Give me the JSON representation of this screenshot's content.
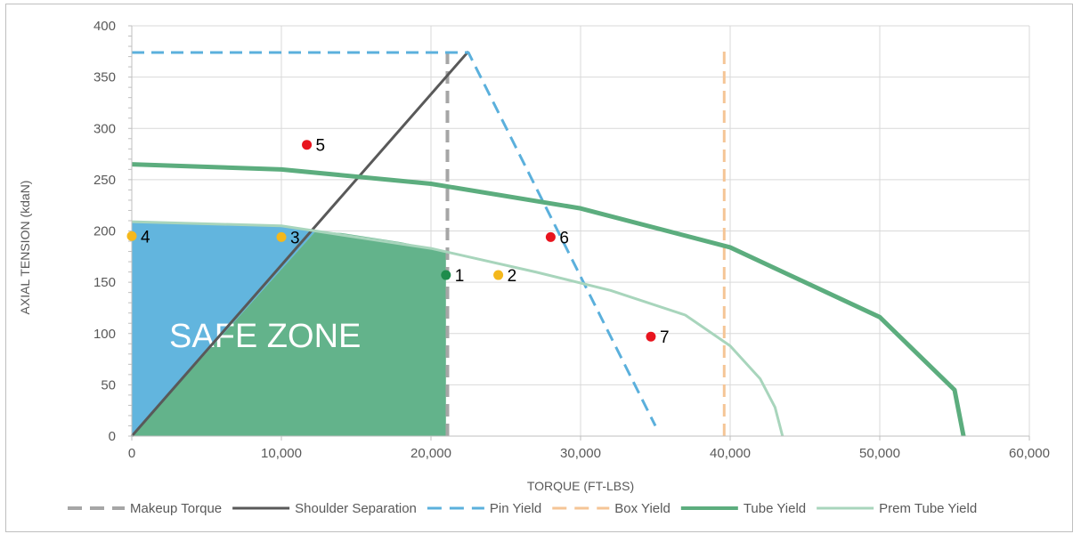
{
  "chart_data": {
    "type": "scatter",
    "xlabel": "TORQUE (FT-LBS)",
    "ylabel": "AXIAL TENSION (kdaN)",
    "xlim": [
      0,
      60000
    ],
    "ylim": [
      0,
      400
    ],
    "x_ticks": [
      0,
      10000,
      20000,
      30000,
      40000,
      50000,
      60000
    ],
    "x_tick_labels": [
      "0",
      "10,000",
      "20,000",
      "30,000",
      "40,000",
      "50,000",
      "60,000"
    ],
    "y_ticks": [
      0,
      50,
      100,
      150,
      200,
      250,
      300,
      350,
      400
    ],
    "y_tick_labels": [
      "0",
      "50",
      "100",
      "150",
      "200",
      "250",
      "300",
      "350",
      "400"
    ],
    "grid": true,
    "legend_position": "bottom",
    "annotation": "SAFE ZONE",
    "series": [
      {
        "name": "Makeup Torque",
        "style": "dashed",
        "color": "#a6a6a6",
        "width": 4,
        "points": [
          [
            21100,
            0
          ],
          [
            21100,
            375
          ]
        ]
      },
      {
        "name": "Shoulder Separation",
        "style": "solid",
        "color": "#595959",
        "width": 3,
        "points": [
          [
            0,
            0
          ],
          [
            22500,
            375
          ]
        ]
      },
      {
        "name": "Pin Yield",
        "style": "dashed",
        "color": "#5bb0dc",
        "width": 3,
        "points": [
          [
            0,
            374
          ],
          [
            22500,
            374
          ],
          [
            35000,
            10
          ]
        ]
      },
      {
        "name": "Box Yield",
        "style": "dashed",
        "color": "#f5c596",
        "width": 3,
        "points": [
          [
            39600,
            0
          ],
          [
            39600,
            375
          ]
        ]
      },
      {
        "name": "Tube Yield",
        "style": "solid",
        "color": "#5cad7e",
        "width": 5,
        "points": [
          [
            0,
            265
          ],
          [
            10000,
            260
          ],
          [
            20000,
            246
          ],
          [
            30000,
            222
          ],
          [
            40000,
            184
          ],
          [
            50000,
            116
          ],
          [
            55000,
            45
          ],
          [
            55600,
            0
          ]
        ]
      },
      {
        "name": "Prem Tube Yield",
        "style": "solid",
        "color": "#a8d5bc",
        "width": 3,
        "points": [
          [
            0,
            209
          ],
          [
            10000,
            205
          ],
          [
            20000,
            183
          ],
          [
            27000,
            160
          ],
          [
            32000,
            142
          ],
          [
            37000,
            118
          ],
          [
            40000,
            88
          ],
          [
            42000,
            56
          ],
          [
            43000,
            28
          ],
          [
            43500,
            0
          ]
        ]
      }
    ],
    "points": [
      {
        "label": "1",
        "x": 21000,
        "y": 157,
        "color": "#1e8c4c"
      },
      {
        "label": "2",
        "x": 24500,
        "y": 157,
        "color": "#f4b81c"
      },
      {
        "label": "3",
        "x": 10000,
        "y": 194,
        "color": "#f4b81c"
      },
      {
        "label": "4",
        "x": 0,
        "y": 195,
        "color": "#f4b81c"
      },
      {
        "label": "5",
        "x": 11700,
        "y": 284,
        "color": "#e8141e"
      },
      {
        "label": "6",
        "x": 28000,
        "y": 194,
        "color": "#e8141e"
      },
      {
        "label": "7",
        "x": 34700,
        "y": 97,
        "color": "#e8141e"
      }
    ],
    "regions": [
      {
        "fill": "#62b5de",
        "polygon": [
          [
            0,
            0
          ],
          [
            0,
            209
          ],
          [
            10000,
            205
          ],
          [
            12300,
            200
          ],
          [
            12300,
            200
          ],
          [
            0,
            0
          ]
        ]
      },
      {
        "fill": "#63b38b",
        "polygon": [
          [
            0,
            0
          ],
          [
            12300,
            200
          ],
          [
            14000,
            198
          ],
          [
            18000,
            189
          ],
          [
            21000,
            180
          ],
          [
            21000,
            0
          ]
        ]
      }
    ]
  }
}
